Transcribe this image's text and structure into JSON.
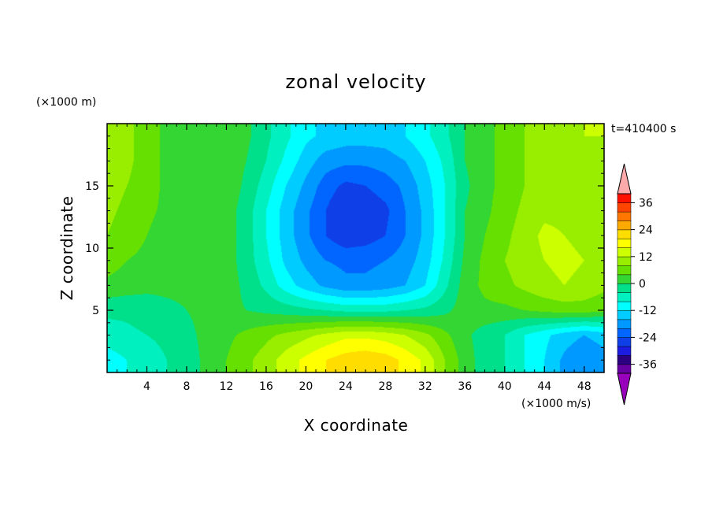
{
  "chart_data": {
    "type": "heatmap",
    "title": "zonal velocity",
    "xlabel": "X coordinate",
    "ylabel": "Z coordinate",
    "x_unit": "(×1000 m/s)",
    "y_unit": "(×1000 m)",
    "time_label": "t=410400 s",
    "xlim": [
      0,
      50
    ],
    "ylim": [
      0,
      20
    ],
    "xticks": [
      4,
      8,
      12,
      16,
      20,
      24,
      28,
      32,
      36,
      40,
      44,
      48
    ],
    "yticks": [
      5,
      10,
      15
    ],
    "x": [
      0,
      2,
      4,
      6,
      8,
      10,
      12,
      14,
      16,
      18,
      20,
      22,
      24,
      26,
      28,
      30,
      32,
      34,
      36,
      38,
      40,
      42,
      44,
      46,
      48,
      50
    ],
    "z": [
      1,
      3,
      5,
      7,
      9,
      11,
      13,
      15,
      17,
      19
    ],
    "values": [
      [
        -10,
        -8,
        -6,
        -4,
        -2,
        1,
        4,
        7,
        10,
        14,
        17,
        20,
        22,
        23,
        22,
        19,
        15,
        8,
        2,
        -2,
        -4,
        -8,
        -12,
        -17,
        -20,
        -18
      ],
      [
        -6,
        -5,
        -4,
        -3,
        -1,
        1,
        3,
        5,
        7,
        9,
        11,
        13,
        15,
        15,
        14,
        12,
        9,
        5,
        1,
        -2,
        -4,
        -8,
        -11,
        -14,
        -16,
        -14
      ],
      [
        -3,
        -3,
        -2,
        -1,
        0,
        1,
        1,
        0,
        -1,
        -2,
        -3,
        -4,
        -5,
        -5,
        -5,
        -4,
        -3,
        -1,
        2,
        3,
        3,
        4,
        5,
        6,
        6,
        5
      ],
      [
        3,
        2,
        1,
        1,
        1,
        2,
        2,
        -1,
        -5,
        -10,
        -14,
        -17,
        -19,
        -19,
        -18,
        -16,
        -12,
        -5,
        2,
        5,
        7,
        9,
        11,
        12,
        11,
        9
      ],
      [
        6,
        4,
        3,
        2,
        1,
        2,
        2,
        -2,
        -7,
        -13,
        -17,
        -20,
        -21,
        -21,
        -20,
        -18,
        -14,
        -7,
        1,
        5,
        8,
        10,
        12,
        13,
        12,
        10
      ],
      [
        8,
        6,
        4,
        2,
        1,
        2,
        2,
        -2,
        -8,
        -14,
        -19,
        -24,
        -27,
        -26,
        -24,
        -20,
        -15,
        -8,
        0,
        4,
        7,
        10,
        13,
        12,
        11,
        10
      ],
      [
        9,
        7,
        5,
        3,
        1,
        2,
        2,
        -2,
        -8,
        -14,
        -19,
        -24,
        -28,
        -27,
        -25,
        -20,
        -15,
        -8,
        0,
        3,
        6,
        9,
        11,
        11,
        10,
        9
      ],
      [
        10,
        8,
        6,
        3,
        1,
        2,
        3,
        -1,
        -6,
        -12,
        -17,
        -22,
        -25,
        -24,
        -22,
        -19,
        -14,
        -8,
        -1,
        3,
        5,
        8,
        10,
        10,
        10,
        10
      ],
      [
        11,
        9,
        6,
        3,
        1,
        2,
        3,
        0,
        -4,
        -9,
        -14,
        -18,
        -19,
        -19,
        -18,
        -16,
        -12,
        -7,
        0,
        3,
        5,
        8,
        10,
        10,
        11,
        11
      ],
      [
        12,
        9,
        6,
        3,
        1,
        2,
        3,
        1,
        -3,
        -7,
        -11,
        -13,
        -14,
        -14,
        -14,
        -12,
        -9,
        -5,
        0,
        3,
        5,
        8,
        10,
        11,
        12,
        12
      ]
    ],
    "colorbar": {
      "levels": [
        -40,
        -36,
        -32,
        -28,
        -24,
        -20,
        -16,
        -12,
        -8,
        -4,
        0,
        4,
        8,
        12,
        16,
        20,
        24,
        28,
        32,
        36,
        40
      ],
      "colors": [
        "#6600a3",
        "#2a0080",
        "#1c1ce0",
        "#0f3fe6",
        "#0066ff",
        "#0099ff",
        "#00ccff",
        "#00ffff",
        "#00f0c0",
        "#00e08a",
        "#33d633",
        "#66e000",
        "#99ee00",
        "#ccff00",
        "#ffff00",
        "#ffdd00",
        "#ffaa00",
        "#ff7700",
        "#ff4400",
        "#ff1100"
      ],
      "under_color": "#9900bb",
      "over_color": "#ffaaaa",
      "tick_labels": [
        "-36",
        "-24",
        "-12",
        "0",
        "12",
        "24",
        "36"
      ],
      "tick_values": [
        -36,
        -24,
        -12,
        0,
        12,
        24,
        36
      ]
    },
    "grid": false,
    "legend": "colorbar-right"
  }
}
